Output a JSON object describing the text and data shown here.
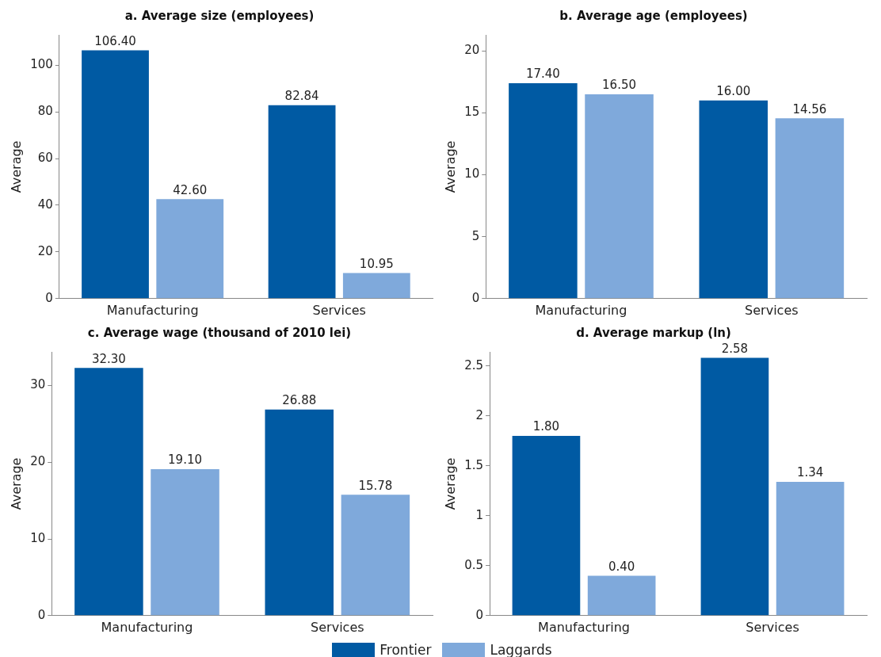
{
  "chart_data": [
    {
      "type": "bar",
      "title": "a. Average size (employees)",
      "ylabel": "Average",
      "categories": [
        "Manufacturing",
        "Services"
      ],
      "series": [
        {
          "color": "#005aa3",
          "values": [
            106.4,
            82.84
          ],
          "value_labels": [
            "106.40",
            "82.84"
          ]
        },
        {
          "color": "#7fa9db",
          "values": [
            42.6,
            10.95
          ],
          "value_labels": [
            "42.60",
            "10.95"
          ]
        }
      ],
      "ylim": [
        0,
        113
      ],
      "yticks": [
        0,
        20,
        40,
        60,
        80,
        100
      ],
      "grid": false
    },
    {
      "type": "bar",
      "title": "b. Average age (employees)",
      "ylabel": "Average",
      "categories": [
        "Manufacturing",
        "Services"
      ],
      "series": [
        {
          "color": "#005aa3",
          "values": [
            17.4,
            16.0
          ],
          "value_labels": [
            "17.40",
            "16.00"
          ]
        },
        {
          "color": "#7fa9db",
          "values": [
            16.5,
            14.56
          ],
          "value_labels": [
            "16.50",
            "14.56"
          ]
        }
      ],
      "ylim": [
        0,
        21.3
      ],
      "yticks": [
        0,
        5,
        10,
        15,
        20
      ],
      "grid": false
    },
    {
      "type": "bar",
      "title": "c. Average wage (thousand of 2010 lei)",
      "ylabel": "Average",
      "categories": [
        "Manufacturing",
        "Services"
      ],
      "series": [
        {
          "color": "#005aa3",
          "values": [
            32.3,
            26.88
          ],
          "value_labels": [
            "32.30",
            "26.88"
          ]
        },
        {
          "color": "#7fa9db",
          "values": [
            19.1,
            15.78
          ],
          "value_labels": [
            "19.10",
            "15.78"
          ]
        }
      ],
      "ylim": [
        0,
        34.4
      ],
      "yticks": [
        0,
        10,
        20,
        30
      ],
      "grid": false
    },
    {
      "type": "bar",
      "title": "d. Average markup (ln)",
      "ylabel": "Average",
      "categories": [
        "Manufacturing",
        "Services"
      ],
      "series": [
        {
          "name": "Frontier",
          "color": "#005aa3",
          "values": [
            1.8,
            2.58
          ],
          "value_labels": [
            "1.80",
            "2.58"
          ]
        },
        {
          "name": "Laggards",
          "color": "#7fa9db",
          "values": [
            0.4,
            1.34
          ],
          "value_labels": [
            "0.40",
            "1.34"
          ]
        }
      ],
      "ylim": [
        0,
        2.64
      ],
      "yticks": [
        0,
        0.5,
        1,
        1.5,
        2,
        2.5
      ],
      "grid": false,
      "legend": "bottom"
    }
  ]
}
